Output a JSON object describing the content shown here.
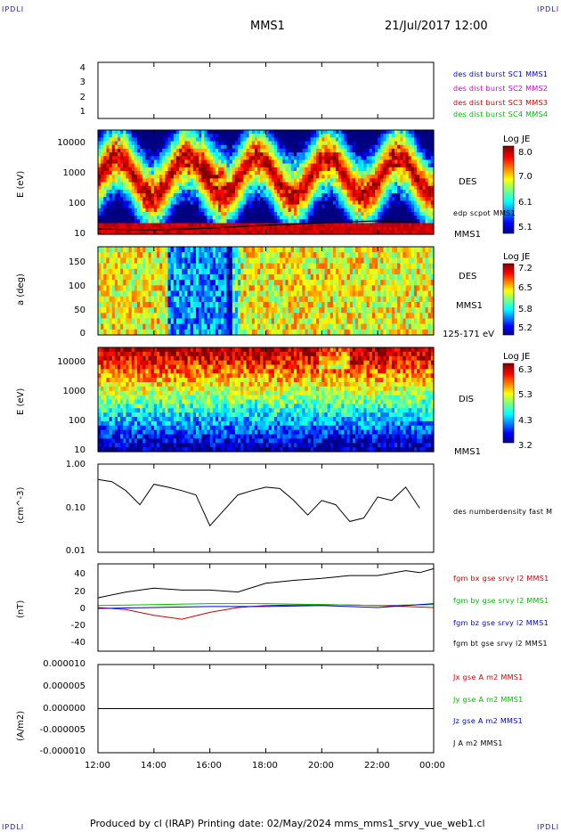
{
  "header": {
    "corner_tl": "IPDLI",
    "corner_tr": "IPDLI",
    "corner_bl": "IPDLI",
    "corner_br": "IPDLI",
    "spacecraft": "MMS1",
    "date": "21/Jul/2017 12:00"
  },
  "footer": {
    "text": "Produced by cl (IRAP)   Printing date: 02/May/2024   mms_mms1_srvy_vue_web1.cl"
  },
  "x_axis": {
    "ticks": [
      "12:00",
      "14:00",
      "16:00",
      "18:00",
      "20:00",
      "22:00",
      "00:00"
    ]
  },
  "panels": {
    "p1": {
      "yticks": [
        "4",
        "3",
        "2",
        "1"
      ],
      "legend": [
        {
          "text": "des dist burst SC1 MMS1",
          "color": "#0000cc"
        },
        {
          "text": "des dist burst SC2 MMS2",
          "color": "#cc00cc"
        },
        {
          "text": "des dist burst SC3 MMS3",
          "color": "#cc0000"
        },
        {
          "text": "des dist burst SC4 MMS4",
          "color": "#00bb00"
        }
      ]
    },
    "p2": {
      "ylabel": "E (eV)",
      "yticks": [
        "10000",
        "1000",
        "100",
        "10"
      ],
      "instrument": "DES",
      "overlay_label": "edp scpot MMS1",
      "spacecraft": "MMS1",
      "colorbar": {
        "title": "Log JE",
        "ticks": [
          "8.0",
          "7.0",
          "6.1",
          "5.1"
        ]
      }
    },
    "p3": {
      "ylabel": "a (deg)",
      "yticks": [
        "150",
        "100",
        "50",
        "0"
      ],
      "instrument": "DES",
      "spacecraft": "MMS1",
      "energy_range": "125-171 eV",
      "colorbar": {
        "title": "Log JE",
        "ticks": [
          "7.2",
          "6.5",
          "5.8",
          "5.2"
        ]
      }
    },
    "p4": {
      "ylabel": "E (eV)",
      "yticks": [
        "10000",
        "1000",
        "100",
        "10"
      ],
      "instrument": "DIS",
      "spacecraft": "MMS1",
      "colorbar": {
        "title": "Log JE",
        "ticks": [
          "6.3",
          "5.3",
          "4.3",
          "3.2"
        ]
      }
    },
    "p5": {
      "ylabel": "(cm^-3)",
      "yticks": [
        "1.00",
        "0.10",
        "0.01"
      ],
      "legend": "des numberdensity fast M"
    },
    "p6": {
      "ylabel": "(nT)",
      "yticks": [
        "40",
        "20",
        "0",
        "-20",
        "-40"
      ],
      "legend": [
        {
          "text": "fgm bx gse srvy l2 MMS1",
          "color": "#cc0000"
        },
        {
          "text": "fgm by gse srvy l2 MMS1",
          "color": "#00bb00"
        },
        {
          "text": "fgm bz gse srvy l2 MMS1",
          "color": "#0000cc"
        },
        {
          "text": "fgm bt gse srvy l2 MMS1",
          "color": "#000000"
        }
      ]
    },
    "p7": {
      "ylabel": "(A/m2)",
      "yticks": [
        "0.000010",
        "0.000005",
        "0.000000",
        "-0.000005",
        "-0.000010"
      ],
      "legend": [
        {
          "text": "Jx gse A m2 MMS1",
          "color": "#cc0000"
        },
        {
          "text": "Jy gse A m2 MMS1",
          "color": "#00bb00"
        },
        {
          "text": "Jz gse A m2 MMS1",
          "color": "#0000cc"
        },
        {
          "text": "J A m2 MMS1",
          "color": "#000000"
        }
      ]
    }
  },
  "chart_data": [
    {
      "type": "line",
      "title": "",
      "xlabel": "",
      "ylabel": "",
      "x_range": [
        "12:00",
        "00:00"
      ],
      "ylim": [
        0.5,
        4.5
      ],
      "series": []
    },
    {
      "type": "heatmap",
      "ylabel": "E (eV)",
      "y_scale": "log",
      "ylim": [
        10,
        30000
      ],
      "x_range": [
        "12:00",
        "00:00"
      ],
      "colorbar_label": "Log JE",
      "colorbar_range": [
        5.1,
        8.0
      ],
      "overlay": {
        "name": "edp scpot MMS1",
        "x": [
          "12:00",
          "14:00",
          "16:00",
          "18:00",
          "20:00",
          "22:00",
          "23:30"
        ],
        "y": [
          15,
          14,
          16,
          20,
          24,
          28,
          25
        ]
      }
    },
    {
      "type": "heatmap",
      "ylabel": "a (deg)",
      "ylim": [
        0,
        180
      ],
      "x_range": [
        "12:00",
        "00:00"
      ],
      "colorbar_label": "Log JE",
      "colorbar_range": [
        5.2,
        7.2
      ],
      "energy_range": "125-171 eV"
    },
    {
      "type": "heatmap",
      "ylabel": "E (eV)",
      "y_scale": "log",
      "ylim": [
        10,
        30000
      ],
      "x_range": [
        "12:00",
        "00:00"
      ],
      "colorbar_label": "Log JE",
      "colorbar_range": [
        3.2,
        6.3
      ]
    },
    {
      "type": "line",
      "ylabel": "(cm^-3)",
      "y_scale": "log",
      "ylim": [
        0.01,
        1.0
      ],
      "series": [
        {
          "name": "des numberdensity fast M",
          "x": [
            "12:00",
            "12:30",
            "13:00",
            "13:30",
            "14:00",
            "14:30",
            "15:00",
            "15:30",
            "16:00",
            "16:30",
            "17:00",
            "17:30",
            "18:00",
            "18:30",
            "19:00",
            "19:30",
            "20:00",
            "20:30",
            "21:00",
            "21:30",
            "22:00",
            "22:30",
            "23:00",
            "23:30"
          ],
          "values": [
            0.45,
            0.4,
            0.25,
            0.12,
            0.35,
            0.3,
            0.25,
            0.2,
            0.04,
            0.09,
            0.2,
            0.25,
            0.3,
            0.28,
            0.15,
            0.07,
            0.15,
            0.12,
            0.05,
            0.06,
            0.18,
            0.15,
            0.3,
            0.1
          ]
        }
      ]
    },
    {
      "type": "line",
      "ylabel": "(nT)",
      "ylim": [
        -45,
        45
      ],
      "series": [
        {
          "name": "fgm bt gse srvy l2 MMS1",
          "x": [
            "12:00",
            "13:00",
            "14:00",
            "15:00",
            "16:00",
            "17:00",
            "18:00",
            "19:00",
            "20:00",
            "21:00",
            "22:00",
            "23:00",
            "23:30",
            "00:00"
          ],
          "values": [
            10,
            16,
            20,
            18,
            18,
            16,
            25,
            28,
            30,
            33,
            33,
            38,
            36,
            40
          ]
        },
        {
          "name": "fgm bx gse srvy l2 MMS1",
          "x": [
            "12:00",
            "13:00",
            "14:00",
            "15:00",
            "16:00",
            "17:00",
            "18:00",
            "20:00",
            "22:00",
            "00:00"
          ],
          "values": [
            0,
            -2,
            -8,
            -12,
            -5,
            0,
            2,
            3,
            2,
            0
          ]
        },
        {
          "name": "fgm by gse srvy l2 MMS1",
          "x": [
            "12:00",
            "14:00",
            "16:00",
            "18:00",
            "20:00",
            "22:00",
            "00:00"
          ],
          "values": [
            2,
            3,
            4,
            4,
            3,
            2,
            3
          ]
        },
        {
          "name": "fgm bz gse srvy l2 MMS1",
          "x": [
            "12:00",
            "14:00",
            "16:00",
            "18:00",
            "20:00",
            "22:00",
            "00:00"
          ],
          "values": [
            -1,
            0,
            1,
            1,
            2,
            0,
            4
          ]
        }
      ]
    },
    {
      "type": "line",
      "ylabel": "(A/m2)",
      "ylim": [
        -1e-05,
        1e-05
      ],
      "series": [
        {
          "name": "J A m2 MMS1",
          "x": [
            "12:00",
            "00:00"
          ],
          "values": [
            0.0,
            0.0
          ]
        }
      ]
    }
  ]
}
